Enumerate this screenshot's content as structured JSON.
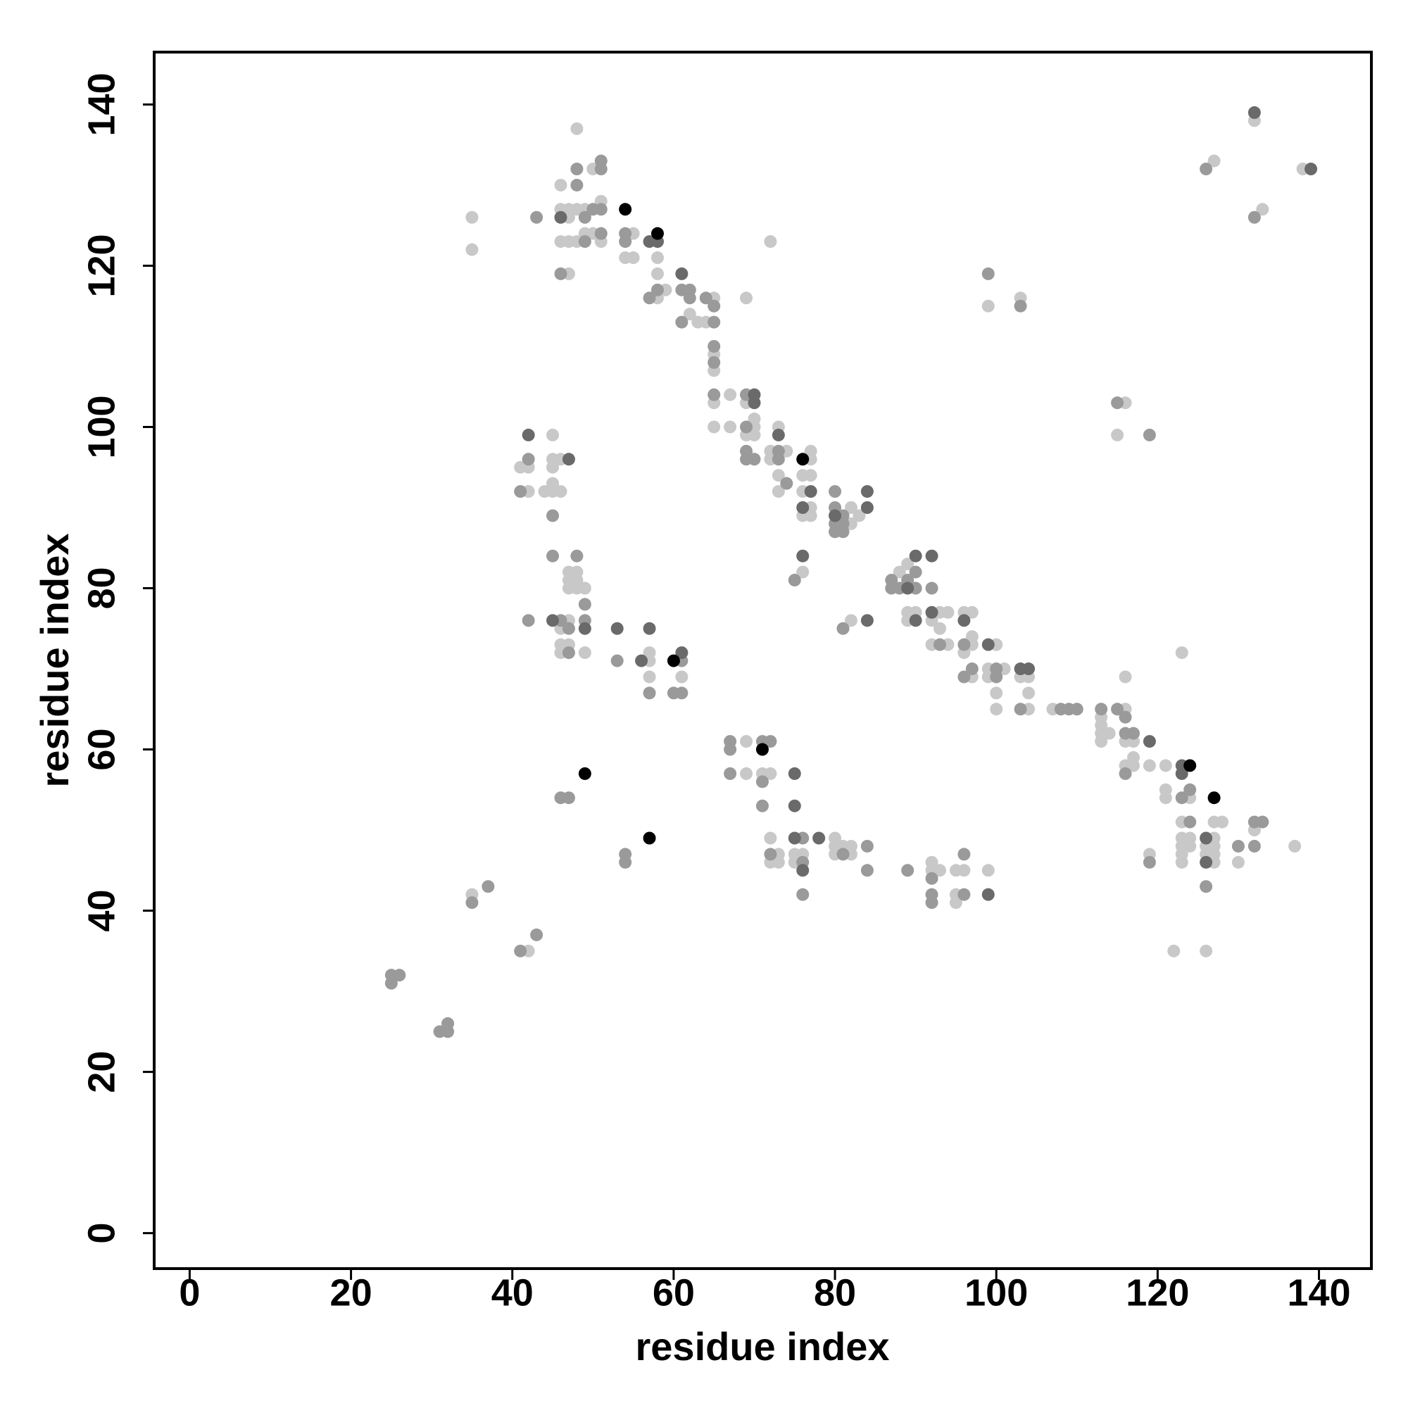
{
  "chart_data": {
    "type": "scatter",
    "xlabel": "residue index",
    "ylabel": "residue index",
    "xlim": [
      -4.4,
      146.5
    ],
    "ylim": [
      -4.4,
      146.5
    ],
    "xticks": [
      0,
      20,
      40,
      60,
      80,
      100,
      120,
      140
    ],
    "yticks": [
      0,
      20,
      40,
      60,
      80,
      100,
      120,
      140
    ],
    "grid": false,
    "series": [
      {
        "color": "#c8c8c8",
        "x": [
          132,
          127,
          138,
          133,
          48,
          50,
          46,
          51,
          46,
          47,
          48,
          49,
          47,
          35,
          49,
          50,
          55,
          46,
          47,
          48,
          51,
          35,
          54,
          55,
          58,
          47,
          58,
          59,
          58,
          65,
          62,
          63,
          64,
          69,
          72,
          65,
          65,
          65,
          67,
          69,
          65,
          67,
          70,
          70,
          69,
          70,
          73,
          72,
          74,
          77,
          72,
          77,
          73,
          76,
          77,
          73,
          76,
          77,
          76,
          77,
          82,
          82,
          83,
          45,
          45,
          46,
          41,
          42,
          45,
          45,
          42,
          44,
          45,
          46,
          76,
          47,
          48,
          47,
          48,
          47,
          48,
          49,
          47,
          46,
          46,
          47,
          46,
          49,
          57,
          57,
          57,
          61,
          88,
          89,
          82,
          89,
          90,
          89,
          93,
          94,
          96,
          97,
          92,
          93,
          97,
          92,
          94,
          97,
          100,
          96,
          99,
          101,
          97,
          99,
          103,
          104,
          100,
          104,
          100,
          104,
          107,
          116,
          113,
          113,
          113,
          114,
          113,
          116,
          117,
          116,
          123,
          117,
          116,
          117,
          119,
          121,
          121,
          121,
          124,
          123,
          127,
          128,
          132,
          123,
          124,
          127,
          123,
          124,
          126,
          127,
          137,
          119,
          123,
          126,
          127,
          123,
          127,
          130,
          122,
          126,
          69,
          69,
          71,
          72,
          72,
          80,
          73,
          75,
          76,
          80,
          81,
          82,
          72,
          73,
          75,
          80,
          82,
          92,
          92,
          93,
          95,
          96,
          95,
          99,
          95,
          35,
          42,
          99,
          103,
          116,
          115
        ],
        "values": [
          138,
          133,
          132,
          127,
          137,
          132,
          130,
          128,
          127,
          127,
          127,
          127,
          126,
          126,
          124,
          124,
          124,
          123,
          123,
          123,
          123,
          122,
          121,
          121,
          121,
          119,
          119,
          117,
          116,
          116,
          114,
          113,
          113,
          116,
          123,
          109,
          107,
          103,
          104,
          103,
          100,
          100,
          101,
          100,
          99,
          99,
          100,
          97,
          97,
          97,
          96,
          96,
          94,
          94,
          94,
          92,
          92,
          90,
          89,
          89,
          90,
          88,
          89,
          99,
          96,
          96,
          95,
          95,
          95,
          93,
          92,
          92,
          92,
          92,
          82,
          82,
          82,
          81,
          81,
          80,
          80,
          80,
          76,
          75,
          73,
          73,
          72,
          72,
          72,
          71,
          69,
          69,
          82,
          83,
          76,
          77,
          77,
          76,
          77,
          77,
          77,
          77,
          76,
          75,
          74,
          73,
          73,
          73,
          73,
          72,
          70,
          70,
          69,
          69,
          69,
          69,
          67,
          67,
          65,
          65,
          65,
          65,
          64,
          63,
          62,
          62,
          61,
          61,
          61,
          69,
          72,
          59,
          58,
          58,
          58,
          58,
          55,
          54,
          54,
          51,
          51,
          51,
          50,
          49,
          49,
          49,
          48,
          48,
          48,
          48,
          48,
          47,
          47,
          47,
          47,
          46,
          46,
          46,
          35,
          35,
          61,
          57,
          57,
          57,
          49,
          49,
          47,
          47,
          47,
          48,
          48,
          48,
          46,
          46,
          46,
          47,
          47,
          46,
          45,
          45,
          45,
          45,
          42,
          45,
          41,
          42,
          35,
          115,
          116,
          103,
          99
        ]
      },
      {
        "color": "#9a9a9a",
        "x": [
          126,
          132,
          51,
          48,
          51,
          48,
          50,
          51,
          43,
          49,
          51,
          54,
          49,
          54,
          46,
          57,
          58,
          61,
          62,
          62,
          64,
          61,
          65,
          65,
          65,
          65,
          65,
          69,
          69,
          69,
          73,
          69,
          70,
          73,
          74,
          80,
          80,
          81,
          80,
          80,
          81,
          81,
          42,
          41,
          45,
          75,
          45,
          48,
          49,
          42,
          46,
          49,
          47,
          47,
          53,
          61,
          57,
          60,
          61,
          87,
          87,
          88,
          90,
          89,
          90,
          92,
          81,
          93,
          96,
          97,
          100,
          96,
          100,
          103,
          108,
          109,
          110,
          113,
          115,
          116,
          116,
          117,
          116,
          124,
          123,
          124,
          132,
          133,
          130,
          132,
          119,
          126,
          67,
          71,
          72,
          67,
          67,
          71,
          71,
          46,
          47,
          54,
          54,
          76,
          72,
          84,
          76,
          81,
          76,
          84,
          89,
          92,
          96,
          96,
          92,
          92,
          35,
          37,
          41,
          43,
          25,
          26,
          25,
          31,
          32,
          32,
          99,
          103,
          115,
          119
        ],
        "values": [
          132,
          126,
          133,
          132,
          132,
          130,
          127,
          127,
          126,
          126,
          124,
          124,
          123,
          123,
          119,
          116,
          117,
          117,
          117,
          116,
          116,
          113,
          113,
          115,
          110,
          108,
          104,
          104,
          100,
          97,
          97,
          96,
          96,
          96,
          93,
          92,
          90,
          89,
          88,
          87,
          87,
          88,
          96,
          92,
          89,
          81,
          84,
          84,
          78,
          76,
          76,
          76,
          75,
          72,
          71,
          71,
          67,
          67,
          67,
          81,
          80,
          80,
          80,
          81,
          82,
          80,
          75,
          73,
          73,
          70,
          70,
          69,
          69,
          65,
          65,
          65,
          65,
          65,
          65,
          64,
          62,
          62,
          57,
          55,
          54,
          51,
          51,
          51,
          48,
          48,
          46,
          43,
          61,
          61,
          61,
          60,
          57,
          56,
          53,
          54,
          54,
          47,
          46,
          49,
          47,
          48,
          46,
          47,
          42,
          45,
          45,
          44,
          47,
          42,
          42,
          41,
          41,
          43,
          35,
          37,
          32,
          32,
          31,
          25,
          25,
          26,
          119,
          115,
          103,
          99
        ]
      },
      {
        "color": "#6a6a6a",
        "x": [
          132,
          139,
          46,
          57,
          58,
          61,
          70,
          70,
          73,
          77,
          76,
          80,
          84,
          84,
          42,
          47,
          76,
          45,
          49,
          53,
          57,
          56,
          61,
          90,
          92,
          89,
          84,
          90,
          92,
          96,
          99,
          103,
          104,
          119,
          123,
          123,
          126,
          126,
          75,
          75,
          75,
          78,
          76,
          99
        ],
        "values": [
          139,
          132,
          126,
          123,
          123,
          119,
          104,
          103,
          99,
          92,
          90,
          89,
          90,
          92,
          99,
          96,
          84,
          76,
          75,
          75,
          75,
          71,
          72,
          84,
          84,
          80,
          76,
          76,
          77,
          76,
          73,
          70,
          70,
          61,
          58,
          57,
          49,
          46,
          57,
          53,
          49,
          49,
          45,
          42
        ]
      },
      {
        "color": "#000000",
        "x": [
          54,
          58,
          76,
          60,
          124,
          127,
          71,
          49,
          57
        ],
        "values": [
          127,
          124,
          96,
          71,
          58,
          54,
          60,
          57,
          49
        ]
      }
    ]
  }
}
